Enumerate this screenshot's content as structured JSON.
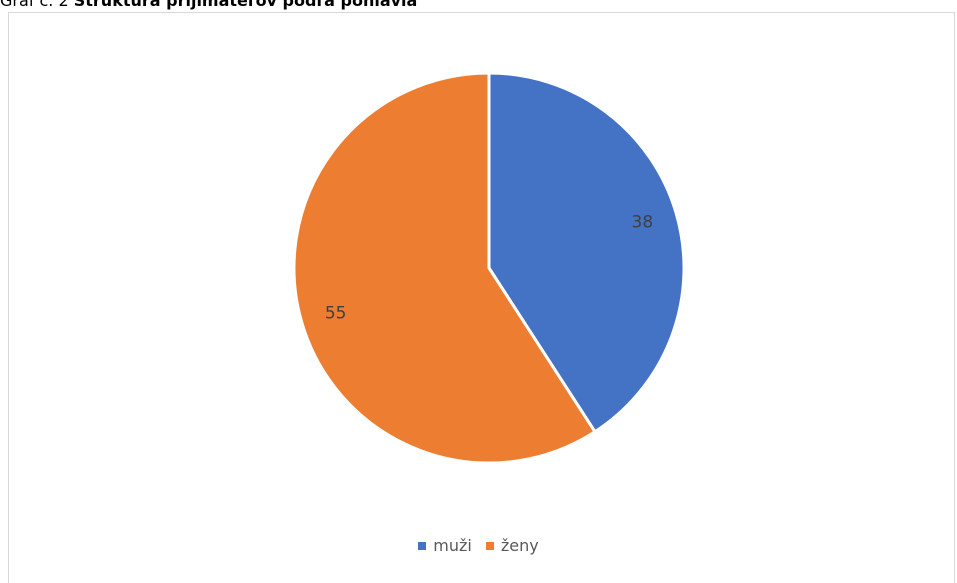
{
  "caption": {
    "prefix": "Graf č. 2 ",
    "title": "Štruktúra prijímateľov podľa pohlavia"
  },
  "chart_data": {
    "type": "pie",
    "title": "",
    "categories": [
      "muži",
      "ženy"
    ],
    "values": [
      38,
      55
    ],
    "colors": [
      "#4472c4",
      "#ed7d31"
    ],
    "start_angle_deg": 0,
    "direction": "clockwise",
    "legend_position": "bottom"
  }
}
